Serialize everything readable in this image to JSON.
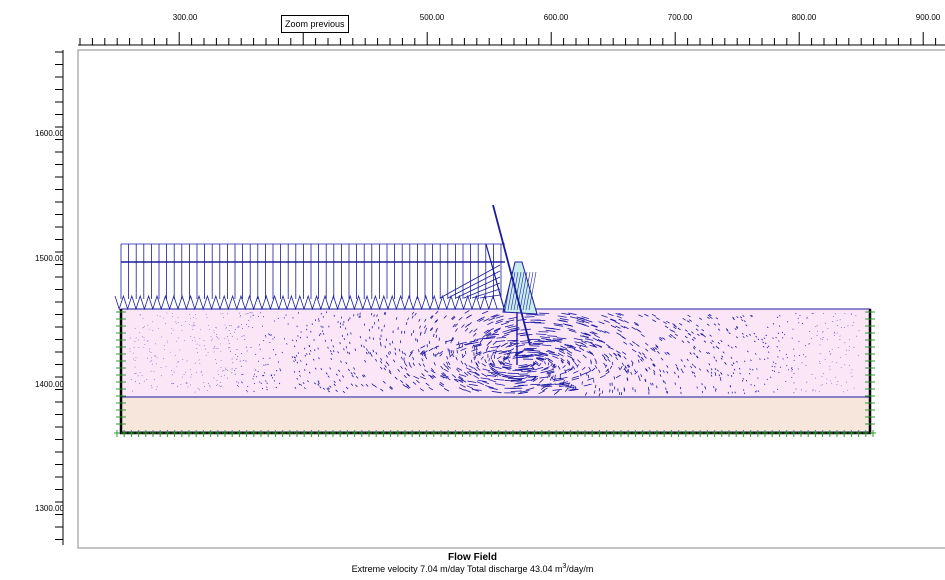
{
  "tooltip": {
    "label": "Zoom previous"
  },
  "x_axis": {
    "labels": [
      "300.00",
      "500.00",
      "600.00",
      "700.00",
      "800.00",
      "900.00"
    ]
  },
  "y_axis": {
    "labels": [
      "1600.00",
      "1500.00",
      "1400.00",
      "1300.00"
    ]
  },
  "caption": {
    "title": "Flow Field",
    "subtitle_prefix": "Extreme velocity 7.04 m/day  Total discharge 43.04 m",
    "subtitle_sup": "3",
    "subtitle_suffix": "/day/m"
  },
  "colors": {
    "vector": "#1a1aa0",
    "upper_layer": "#fbe6f8",
    "lower_layer": "#f6e6dc",
    "dam": "#c8ecec",
    "boundary_green": "#2e9a2e"
  },
  "icons": [
    "plus-marker-icon"
  ]
}
